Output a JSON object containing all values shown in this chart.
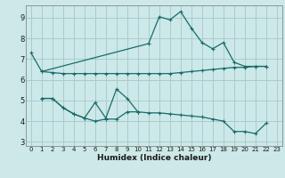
{
  "xlabel": "Humidex (Indice chaleur)",
  "xlim": [
    -0.5,
    23.5
  ],
  "ylim": [
    2.8,
    9.6
  ],
  "yticks": [
    3,
    4,
    5,
    6,
    7,
    8,
    9
  ],
  "xticks": [
    0,
    1,
    2,
    3,
    4,
    5,
    6,
    7,
    8,
    9,
    10,
    11,
    12,
    13,
    14,
    15,
    16,
    17,
    18,
    19,
    20,
    21,
    22,
    23
  ],
  "bg_color": "#cce8e8",
  "grid_color": "#aacccc",
  "line_color": "#1a6b6b",
  "lines": [
    {
      "x": [
        0,
        1,
        11,
        12,
        13,
        14,
        15,
        16,
        17,
        18,
        19,
        20,
        21,
        22
      ],
      "y": [
        7.3,
        6.4,
        7.75,
        9.05,
        8.9,
        9.3,
        8.5,
        7.8,
        7.5,
        7.8,
        6.85,
        6.65,
        6.65,
        6.65
      ]
    },
    {
      "x": [
        1,
        2,
        3,
        4,
        5,
        6,
        7,
        8,
        9,
        10,
        11,
        12,
        13,
        14,
        15,
        16,
        17,
        18,
        19,
        20,
        21,
        22
      ],
      "y": [
        6.4,
        6.35,
        6.3,
        6.3,
        6.3,
        6.3,
        6.3,
        6.3,
        6.3,
        6.3,
        6.3,
        6.3,
        6.3,
        6.35,
        6.4,
        6.45,
        6.5,
        6.55,
        6.6,
        6.6,
        6.65,
        6.65
      ]
    },
    {
      "x": [
        1,
        2,
        3,
        4,
        5,
        6,
        7,
        8,
        9,
        10,
        11,
        12,
        13,
        14,
        15,
        16,
        17,
        18,
        19,
        20,
        21,
        22
      ],
      "y": [
        5.1,
        5.1,
        4.65,
        4.35,
        4.15,
        4.0,
        4.1,
        4.1,
        4.45,
        4.45,
        4.4,
        4.4,
        4.35,
        4.3,
        4.25,
        4.2,
        4.1,
        4.0,
        3.5,
        3.5,
        3.4,
        3.9
      ]
    },
    {
      "x": [
        1,
        2,
        3,
        4,
        5,
        6,
        7,
        8,
        9,
        10
      ],
      "y": [
        5.1,
        5.1,
        4.65,
        4.35,
        4.15,
        4.9,
        4.15,
        5.55,
        5.1,
        4.45
      ]
    }
  ]
}
